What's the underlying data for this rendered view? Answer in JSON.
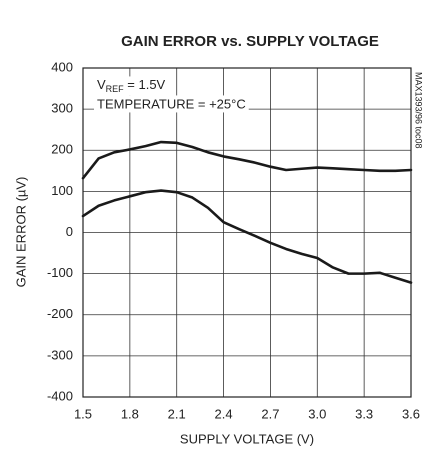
{
  "chart_data": {
    "type": "line",
    "title": "GAIN ERROR vs. SUPPLY VOLTAGE",
    "x_label": "SUPPLY VOLTAGE (V)",
    "y_label": "GAIN ERROR (µV)",
    "vref_label": {
      "main": "V",
      "sub": "REF",
      "rest": " = 1.5V"
    },
    "temperature_label": "TEMPERATURE = +25°C",
    "side_label": "MAX1393/96 toc08",
    "x": [
      1.5,
      1.6,
      1.7,
      1.8,
      1.9,
      2.0,
      2.1,
      2.2,
      2.3,
      2.4,
      2.5,
      2.6,
      2.7,
      2.8,
      2.9,
      3.0,
      3.1,
      3.2,
      3.3,
      3.4,
      3.5,
      3.6
    ],
    "series": [
      {
        "color": "#1a1a1a",
        "values": [
          132,
          180,
          195,
          202,
          210,
          220,
          218,
          208,
          195,
          185,
          178,
          170,
          160,
          152,
          155,
          158,
          156,
          154,
          152,
          150,
          150,
          152
        ]
      },
      {
        "color": "#1a1a1a",
        "values": [
          40,
          65,
          78,
          88,
          98,
          102,
          98,
          85,
          60,
          25,
          8,
          -8,
          -25,
          -40,
          -52,
          -62,
          -85,
          -100,
          -100,
          -98,
          -110,
          -122
        ]
      }
    ],
    "xlim": [
      1.5,
      3.6
    ],
    "xticks": [
      1.5,
      1.8,
      2.1,
      2.4,
      2.7,
      {
        "value": 3,
        "label": "3.0"
      },
      3.3,
      3.6
    ],
    "ylim": [
      -400,
      400
    ],
    "yticks": [
      400,
      300,
      200,
      100,
      0,
      -100,
      -200,
      -300,
      -400
    ],
    "grid": true
  }
}
